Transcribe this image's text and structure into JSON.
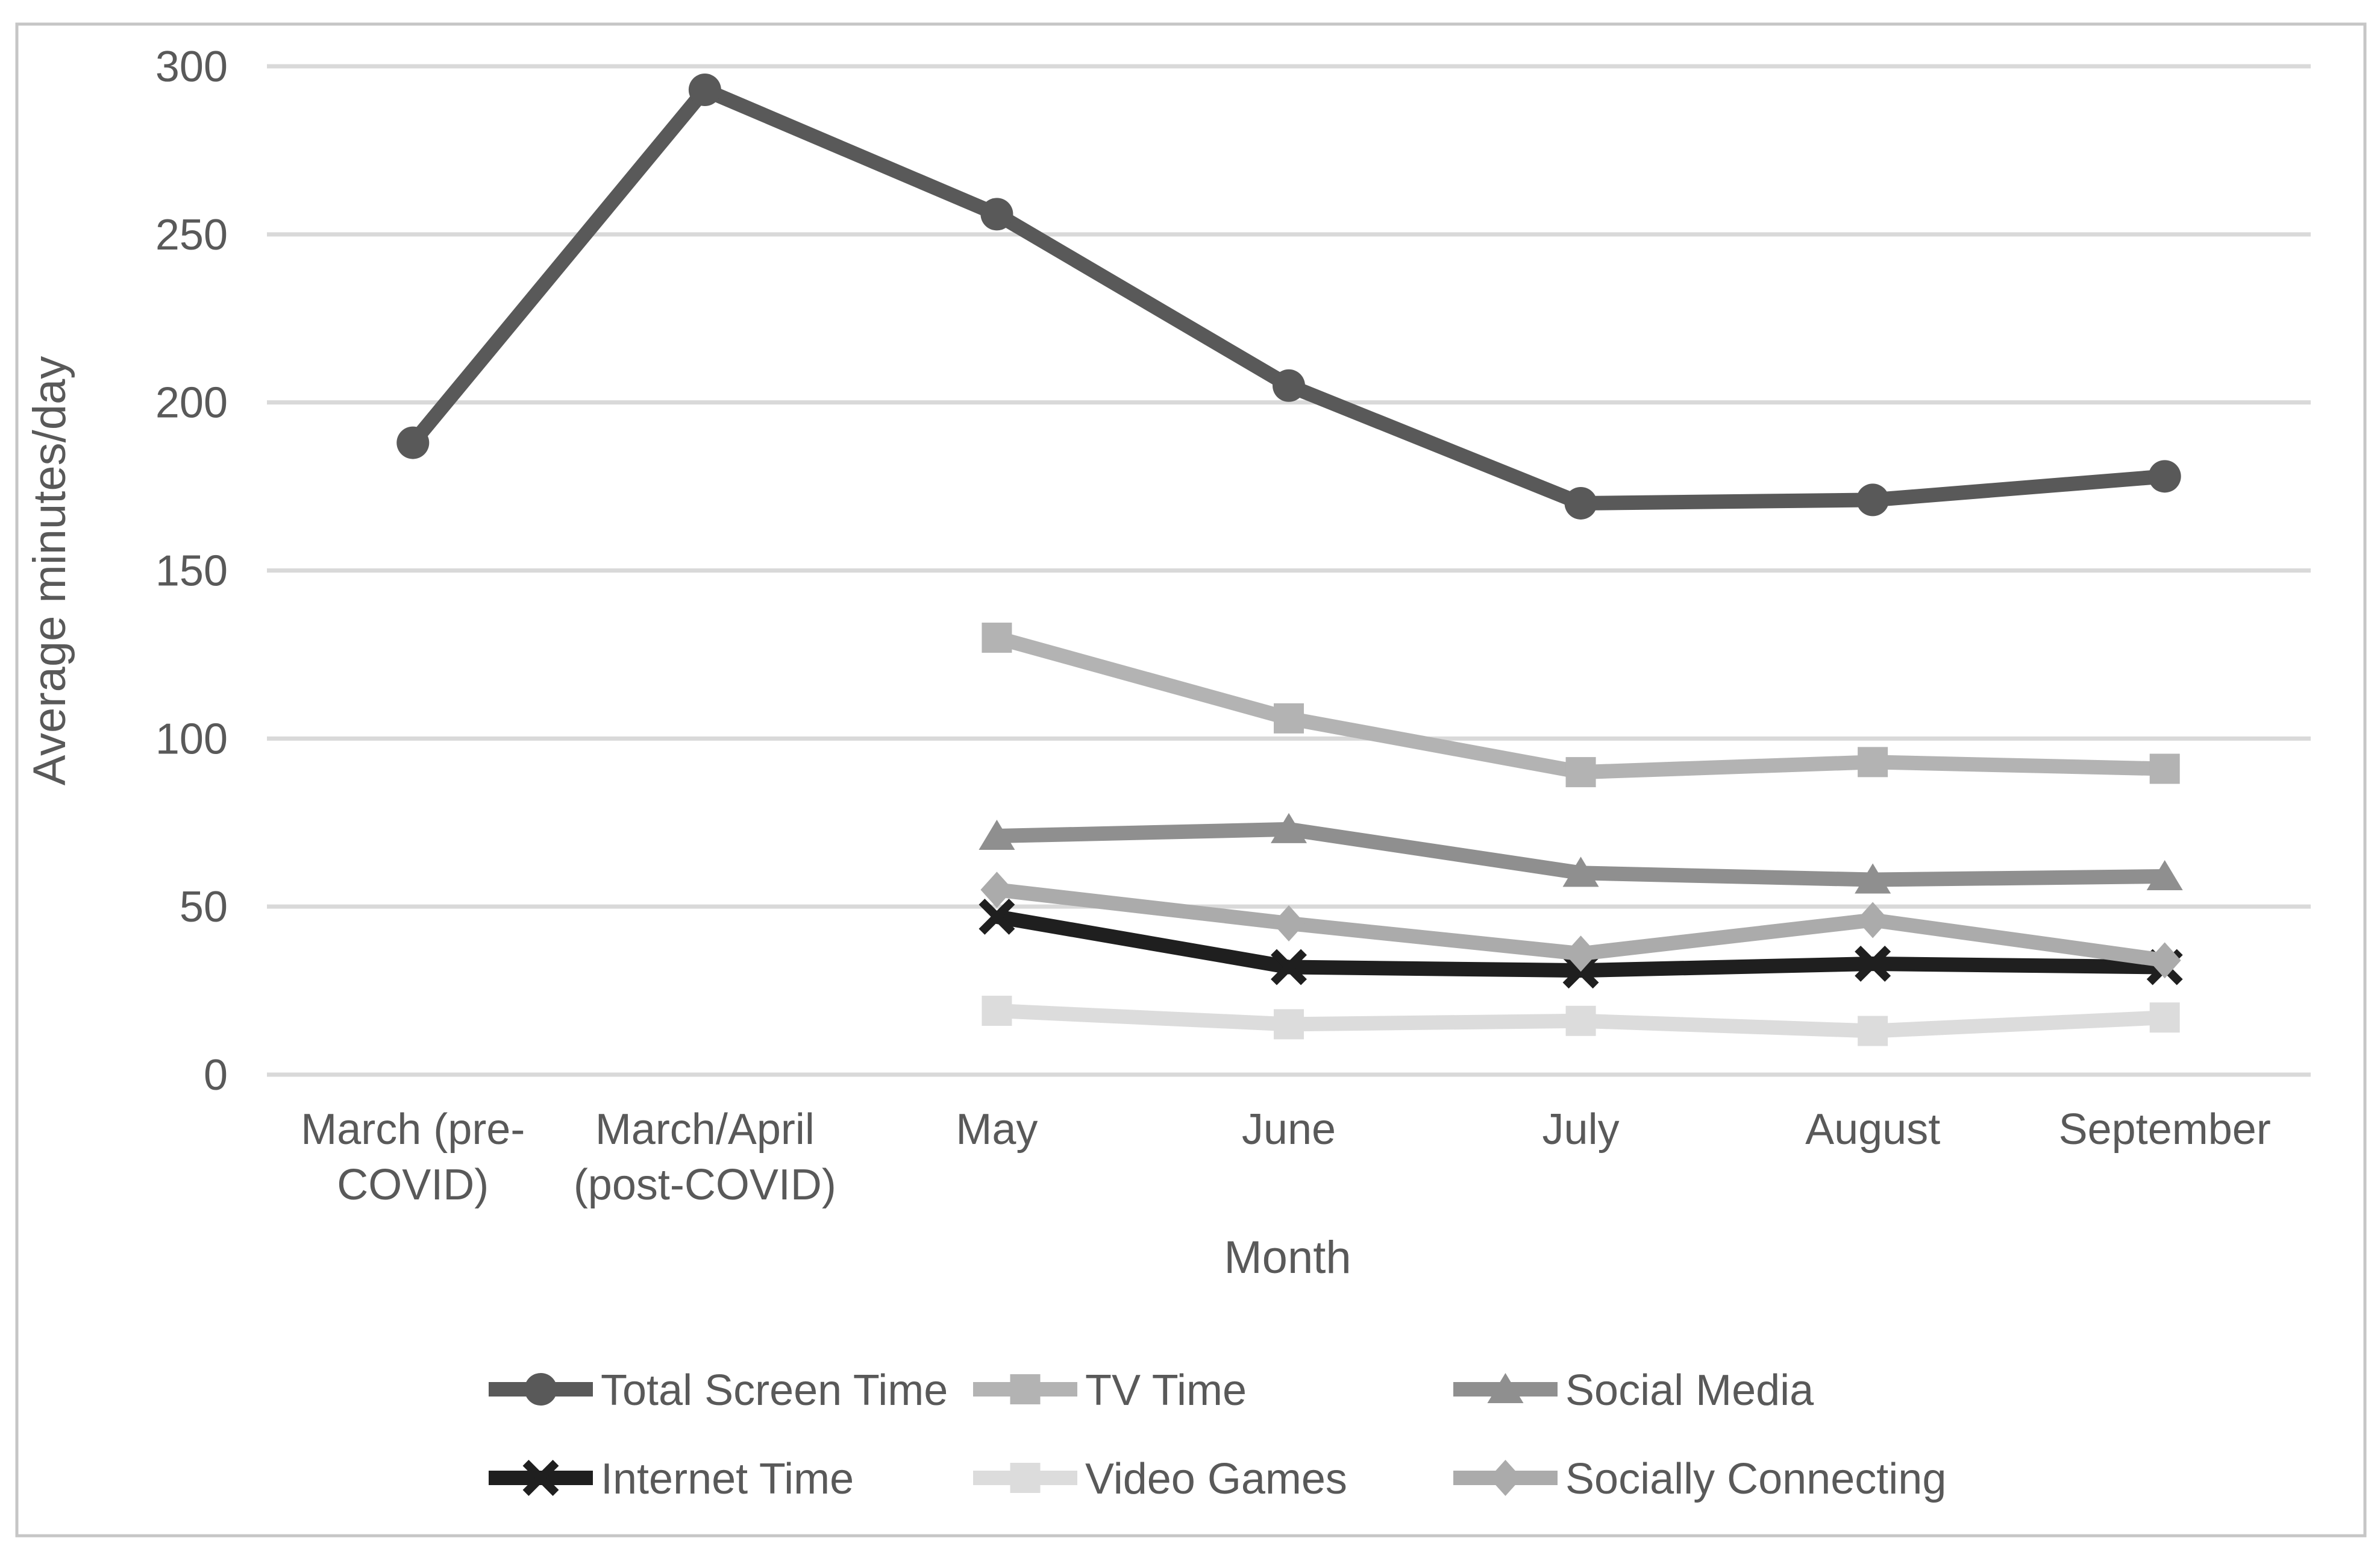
{
  "chart_data": {
    "type": "line",
    "title": "",
    "xlabel": "Month",
    "ylabel": "Average minutes/day",
    "ylim": [
      0,
      300
    ],
    "ytick_step": 50,
    "yticks": [
      0,
      50,
      100,
      150,
      200,
      250,
      300
    ],
    "grid": true,
    "legend_position": "bottom",
    "categories": [
      "March (pre-COVID)",
      "March/April (post-COVID)",
      "May",
      "June",
      "July",
      "August",
      "September"
    ],
    "category_label_lines": [
      [
        "March (pre-",
        "COVID)"
      ],
      [
        "March/April",
        "(post-COVID)"
      ],
      [
        "May"
      ],
      [
        "June"
      ],
      [
        "July"
      ],
      [
        "August"
      ],
      [
        "September"
      ]
    ],
    "series": [
      {
        "name": "Total Screen Time",
        "marker": "circle",
        "color": "#595959",
        "values": [
          188,
          293,
          256,
          205,
          170,
          171,
          178
        ]
      },
      {
        "name": "TV Time",
        "marker": "square",
        "color": "#B3B3B3",
        "values": [
          null,
          null,
          130,
          106,
          90,
          93,
          91
        ]
      },
      {
        "name": "Social Media",
        "marker": "triangle",
        "color": "#8F8F8F",
        "values": [
          null,
          null,
          71,
          73,
          60,
          58,
          59
        ]
      },
      {
        "name": "Internet Time",
        "marker": "x",
        "color": "#1F1F1F",
        "values": [
          null,
          null,
          47,
          32,
          31,
          33,
          32
        ]
      },
      {
        "name": "Video Games",
        "marker": "square",
        "color": "#DCDCDC",
        "values": [
          null,
          null,
          19,
          15,
          16,
          13,
          17
        ]
      },
      {
        "name": "Socially Connecting",
        "marker": "diamond",
        "color": "#ABABAB",
        "values": [
          null,
          null,
          55,
          45,
          36,
          46,
          34
        ]
      }
    ],
    "colors": {
      "background": "#FFFFFF",
      "border": "#C6C6C6",
      "gridline": "#D9D9D9",
      "text": "#595959"
    }
  }
}
